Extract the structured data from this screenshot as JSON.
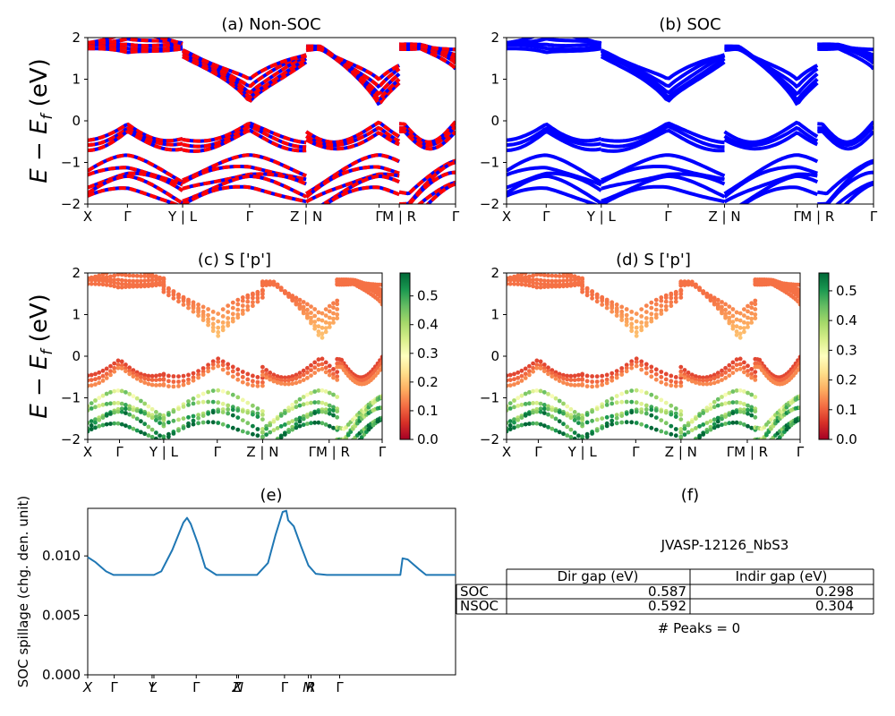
{
  "figure": {
    "ylabel_main": "E − E",
    "ylabel_sub": "f",
    "ylabel_unit": " (eV)"
  },
  "panels": {
    "a": {
      "title": "(a) Non-SOC"
    },
    "b": {
      "title": "(b) SOC"
    },
    "c": {
      "title": "(c)  S ['p']"
    },
    "d": {
      "title": "(d) S ['p']"
    },
    "e": {
      "title": "(e)",
      "ylabel": "SOC spillage (chg. den. unit)"
    },
    "f": {
      "title": "(f)"
    }
  },
  "band_axis": {
    "yticks": [
      "2",
      "1",
      "0",
      "−1",
      "−2"
    ],
    "xticks_ab": [
      "X",
      "Γ",
      "Y | L",
      "Γ",
      "Z | N",
      "Γ",
      "M | R",
      "Γ"
    ],
    "xticks_cd": [
      "X",
      "Γ",
      "Y | L",
      "Γ",
      "Z | N",
      "ΓM | R",
      "Γ"
    ]
  },
  "colorbars": {
    "c": {
      "ticks": [
        "0.5",
        "0.4",
        "0.3",
        "0.2",
        "0.1",
        "0.0"
      ]
    },
    "d": {
      "ticks": [
        "0.5",
        "0.4",
        "0.3",
        "0.2",
        "0.1",
        "0.0"
      ]
    }
  },
  "spillage": {
    "yticks": [
      "0.010",
      "0.005",
      "0.000"
    ],
    "xticks": [
      "X",
      "Γ",
      "Y",
      "L",
      "Γ",
      "Z",
      "N",
      "Γ",
      "M",
      "R",
      "Γ"
    ]
  },
  "info": {
    "material": "JVASP-12126_NbS3",
    "headers": [
      "Dir gap (eV)",
      "Indir gap (eV)"
    ],
    "rows": [
      {
        "label": "SOC",
        "dir": "0.587",
        "indir": "0.298"
      },
      {
        "label": "NSOC",
        "dir": "0.592",
        "indir": "0.304"
      }
    ],
    "peaks": "# Peaks = 0"
  },
  "chart_data": [
    {
      "type": "line",
      "title": "(a) Non-SOC",
      "ylabel": "E − E_f (eV)",
      "ylim": [
        -2,
        2
      ],
      "x_ticks": [
        "X",
        "Γ",
        "Y | L",
        "Γ",
        "Z | N",
        "Γ",
        "M | R",
        "Γ"
      ],
      "series": [
        {
          "name": "",
          "color": "#0000ff"
        },
        {
          "name": "",
          "color": "#ff0000"
        }
      ]
    },
    {
      "type": "line",
      "title": "(b) SOC",
      "ylim": [
        -2,
        2
      ],
      "x_ticks": [
        "X",
        "Γ",
        "Y | L",
        "Γ",
        "Z | N",
        "Γ",
        "M | R",
        "Γ"
      ],
      "series": [
        {
          "name": "",
          "color": "#0000ff"
        }
      ]
    },
    {
      "type": "scatter",
      "title": "(c)  S ['p']",
      "ylim": [
        -2,
        2
      ],
      "colorbar_range": [
        0.0,
        0.58
      ],
      "colormap": "RdYlGn"
    },
    {
      "type": "scatter",
      "title": "(d) S ['p']",
      "ylim": [
        -2,
        2
      ],
      "colorbar_range": [
        0.0,
        0.56
      ],
      "colormap": "RdYlGn"
    },
    {
      "type": "line",
      "title": "(e)",
      "ylabel": "SOC spillage (chg. den. unit)",
      "ylim": [
        0,
        0.014
      ],
      "series": [
        {
          "name": "",
          "color": "#1f77b4",
          "points": [
            [
              0,
              0.0099
            ],
            [
              0.02,
              0.0095
            ],
            [
              0.05,
              0.0087
            ],
            [
              0.07,
              0.0084
            ],
            [
              0.18,
              0.0084
            ],
            [
              0.2,
              0.0087
            ],
            [
              0.23,
              0.0105
            ],
            [
              0.26,
              0.0128
            ],
            [
              0.27,
              0.0132
            ],
            [
              0.28,
              0.0127
            ],
            [
              0.3,
              0.011
            ],
            [
              0.32,
              0.009
            ],
            [
              0.35,
              0.0084
            ],
            [
              0.46,
              0.0084
            ],
            [
              0.49,
              0.0094
            ],
            [
              0.51,
              0.0117
            ],
            [
              0.53,
              0.0137
            ],
            [
              0.54,
              0.0138
            ],
            [
              0.545,
              0.013
            ],
            [
              0.56,
              0.0125
            ],
            [
              0.58,
              0.0108
            ],
            [
              0.6,
              0.0092
            ],
            [
              0.62,
              0.0085
            ],
            [
              0.65,
              0.0084
            ],
            [
              0.85,
              0.0084
            ],
            [
              0.856,
              0.0098
            ],
            [
              0.87,
              0.0097
            ],
            [
              0.9,
              0.0089
            ],
            [
              0.92,
              0.0084
            ],
            [
              1.0,
              0.0084
            ]
          ]
        }
      ]
    },
    {
      "type": "table",
      "title": "(f)",
      "columns": [
        "",
        "Dir gap (eV)",
        "Indir gap (eV)"
      ],
      "rows": [
        [
          "SOC",
          "0.587",
          "0.298"
        ],
        [
          "NSOC",
          "0.592",
          "0.304"
        ]
      ]
    }
  ]
}
